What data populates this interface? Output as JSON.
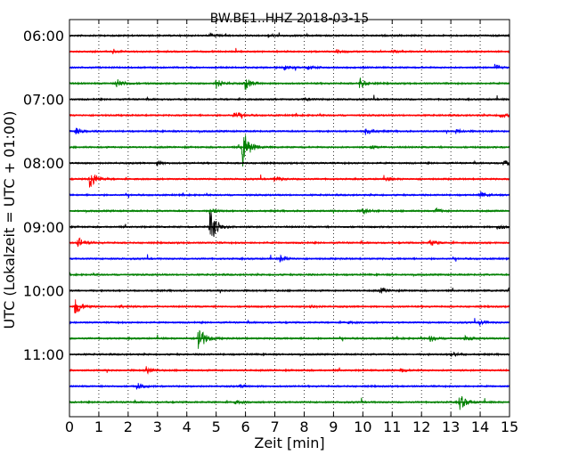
{
  "chart_data": {
    "type": "line",
    "title": "BW.BE1..HHZ 2018-03-15",
    "xlabel": "Zeit  [min]",
    "ylabel": "UTC (Lokalzeit = UTC + 01:00)",
    "xlim": [
      0,
      15
    ],
    "x_ticks": [
      "0",
      "1",
      "2",
      "3",
      "4",
      "5",
      "6",
      "7",
      "8",
      "9",
      "10",
      "11",
      "12",
      "13",
      "14",
      "15"
    ],
    "y_ticks": [
      "06:00",
      "07:00",
      "08:00",
      "09:00",
      "10:00",
      "11:00"
    ],
    "grid": "vertical dotted",
    "trace_colors": [
      "#000000",
      "#ff0000",
      "#0000ff",
      "#008000"
    ],
    "traces": [
      {
        "start": "06:00",
        "color": "#000000",
        "events": [
          [
            4.8,
            0.3
          ],
          [
            6.8,
            0.25
          ]
        ]
      },
      {
        "start": "06:15",
        "color": "#ff0000",
        "events": [
          [
            1.5,
            0.2
          ],
          [
            9.1,
            0.3
          ],
          [
            11.0,
            0.2
          ]
        ]
      },
      {
        "start": "06:30",
        "color": "#0000ff",
        "events": [
          [
            7.3,
            0.3
          ],
          [
            8.1,
            0.3
          ],
          [
            14.5,
            0.4
          ]
        ]
      },
      {
        "start": "06:45",
        "color": "#008000",
        "events": [
          [
            1.6,
            0.8
          ],
          [
            5.0,
            0.8
          ],
          [
            6.0,
            0.9
          ],
          [
            9.9,
            0.8
          ]
        ]
      },
      {
        "start": "07:00",
        "color": "#000000",
        "events": [
          [
            8.0,
            0.2
          ]
        ]
      },
      {
        "start": "07:15",
        "color": "#ff0000",
        "events": [
          [
            5.6,
            0.6
          ],
          [
            14.7,
            0.4
          ]
        ]
      },
      {
        "start": "07:30",
        "color": "#0000ff",
        "events": [
          [
            0.2,
            0.5
          ],
          [
            10.1,
            0.6
          ],
          [
            13.2,
            0.3
          ]
        ]
      },
      {
        "start": "07:45",
        "color": "#008000",
        "events": [
          [
            5.9,
            3.2
          ],
          [
            10.3,
            0.25
          ]
        ]
      },
      {
        "start": "08:00",
        "color": "#000000",
        "events": [
          [
            3.0,
            0.25
          ],
          [
            14.8,
            0.5
          ]
        ]
      },
      {
        "start": "08:15",
        "color": "#ff0000",
        "events": [
          [
            0.7,
            1.6
          ],
          [
            7.0,
            0.4
          ],
          [
            10.8,
            0.25
          ]
        ]
      },
      {
        "start": "08:30",
        "color": "#0000ff",
        "events": [
          [
            14.0,
            0.4
          ]
        ]
      },
      {
        "start": "08:45",
        "color": "#008000",
        "events": [
          [
            4.8,
            0.4
          ],
          [
            10.0,
            0.5
          ],
          [
            12.5,
            0.3
          ]
        ]
      },
      {
        "start": "09:00",
        "color": "#000000",
        "events": [
          [
            4.8,
            3.0
          ],
          [
            14.6,
            0.4
          ]
        ]
      },
      {
        "start": "09:15",
        "color": "#ff0000",
        "events": [
          [
            0.3,
            0.8
          ],
          [
            12.3,
            0.5
          ]
        ]
      },
      {
        "start": "09:30",
        "color": "#0000ff",
        "events": [
          [
            7.2,
            0.5
          ]
        ]
      },
      {
        "start": "09:45",
        "color": "#008000",
        "events": []
      },
      {
        "start": "10:00",
        "color": "#000000",
        "events": [
          [
            10.6,
            0.4
          ],
          [
            15.0,
            0.4
          ]
        ]
      },
      {
        "start": "10:15",
        "color": "#ff0000",
        "events": [
          [
            0.2,
            1.3
          ],
          [
            1.7,
            0.25
          ],
          [
            8.2,
            0.25
          ]
        ]
      },
      {
        "start": "10:30",
        "color": "#0000ff",
        "events": [
          [
            9.4,
            0.25
          ],
          [
            14.0,
            0.3
          ]
        ]
      },
      {
        "start": "10:45",
        "color": "#008000",
        "events": [
          [
            4.4,
            2.2
          ],
          [
            12.3,
            0.4
          ],
          [
            13.5,
            0.3
          ]
        ]
      },
      {
        "start": "11:00",
        "color": "#000000",
        "events": [
          [
            13.0,
            0.4
          ]
        ]
      },
      {
        "start": "11:15",
        "color": "#ff0000",
        "events": [
          [
            2.6,
            0.6
          ],
          [
            11.3,
            0.3
          ]
        ]
      },
      {
        "start": "11:30",
        "color": "#0000ff",
        "events": [
          [
            2.3,
            0.5
          ],
          [
            5.8,
            0.25
          ]
        ]
      },
      {
        "start": "11:45",
        "color": "#008000",
        "events": [
          [
            5.6,
            0.3
          ],
          [
            13.3,
            1.2
          ]
        ]
      }
    ]
  }
}
